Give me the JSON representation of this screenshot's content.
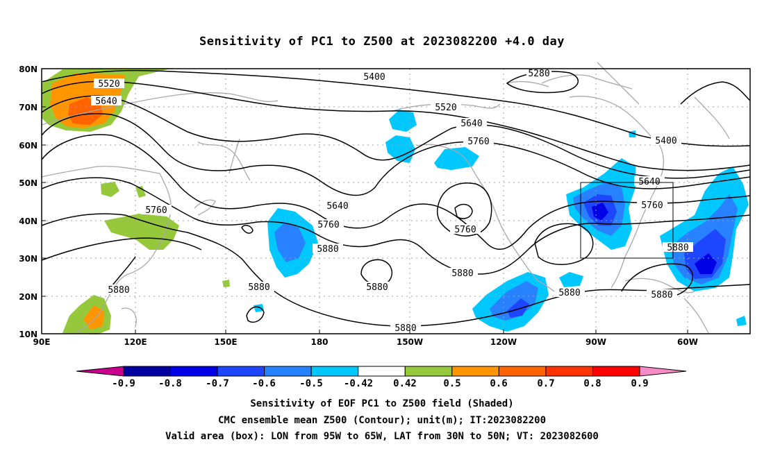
{
  "title": "Sensitivity of PC1 to Z500 at 2023082200 +4.0 day",
  "lat_labels": [
    "80N",
    "70N",
    "60N",
    "50N",
    "40N",
    "30N",
    "20N",
    "10N"
  ],
  "lon_labels": [
    "90E",
    "120E",
    "150E",
    "180",
    "150W",
    "120W",
    "90W",
    "60W"
  ],
  "contour_labels": [
    "5280",
    "5400",
    "5400",
    "5520",
    "5520",
    "5640",
    "5640",
    "5640",
    "5640",
    "5760",
    "5760",
    "5760",
    "5760",
    "5760",
    "5880",
    "5880",
    "5880",
    "5880",
    "5880",
    "5880",
    "5880",
    "5880"
  ],
  "colorbar": {
    "labels": [
      "-0.9",
      "-0.8",
      "-0.7",
      "-0.6",
      "-0.5",
      "-0.42",
      "0.42",
      "0.5",
      "0.6",
      "0.7",
      "0.8",
      "0.9"
    ],
    "colors": [
      "#c8008c",
      "#0000a0",
      "#0000e6",
      "#1e46ff",
      "#2882ff",
      "#00c8ff",
      "#ffffff",
      "#96c83c",
      "#ff9600",
      "#ff6400",
      "#ff3200",
      "#ff0000",
      "#f58cc8"
    ]
  },
  "captions": {
    "line1": "Sensitivity of EOF PC1 to Z500 field (Shaded)",
    "line2": "CMC ensemble mean Z500 (Contour); unit(m); IT:2023082200",
    "line3": "Valid area (box): LON from 95W to 65W, LAT from 30N to 50N; VT: 2023082600"
  }
}
